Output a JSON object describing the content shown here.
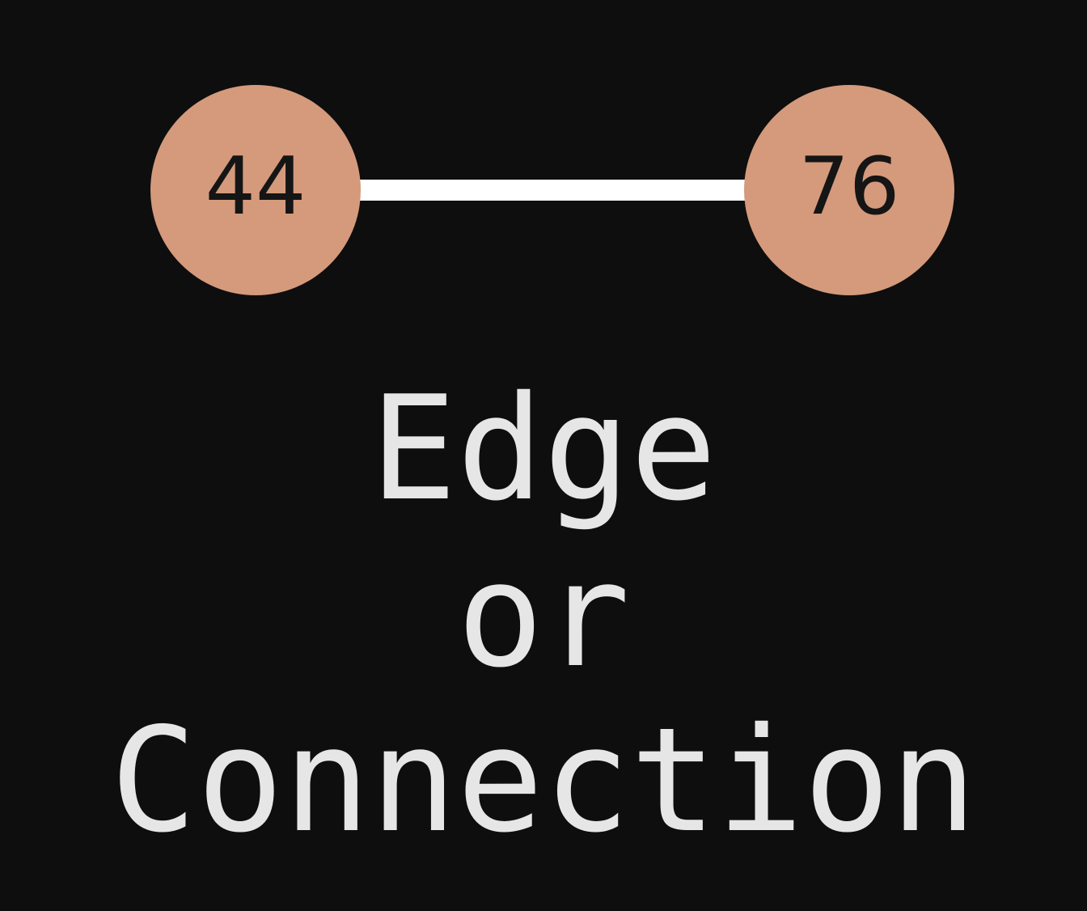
{
  "colors": {
    "background": "#0e0e0e",
    "node_fill": "#d49a7b",
    "edge": "#ffffff",
    "node_text": "#151515",
    "caption_text": "#e6e6e6"
  },
  "graph": {
    "nodes": [
      {
        "label": "44"
      },
      {
        "label": "76"
      }
    ],
    "edges": [
      {
        "from": "44",
        "to": "76"
      }
    ]
  },
  "caption": {
    "line1": "Edge",
    "line2": "or",
    "line3": "Connection"
  }
}
